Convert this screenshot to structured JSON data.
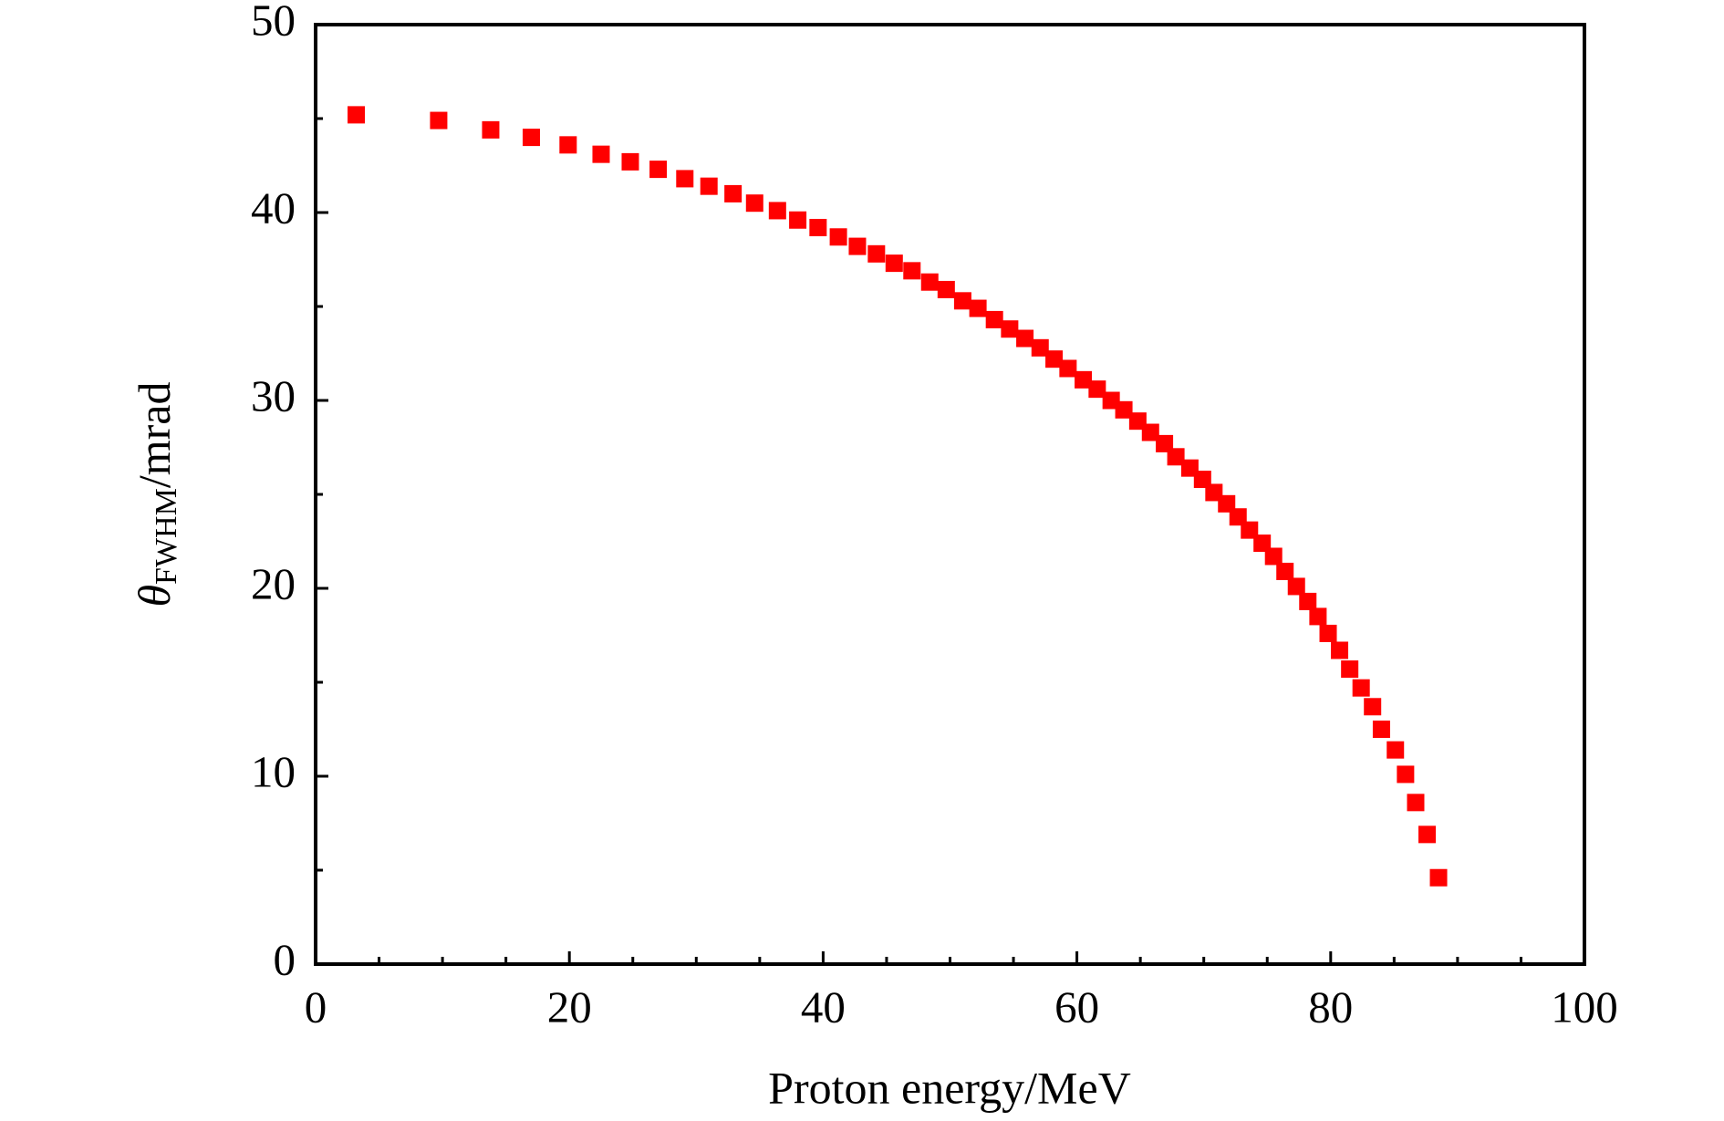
{
  "chart_data": {
    "type": "scatter",
    "x_label": "Proton energy/MeV",
    "y_label": {
      "symbol": "θ",
      "subscript": "FWHM",
      "unit": "/mrad"
    },
    "color": "#ff0000",
    "xlim": [
      0,
      100
    ],
    "ylim": [
      0,
      50
    ],
    "xticks": [
      0,
      20,
      40,
      60,
      80,
      100
    ],
    "yticks": [
      0,
      10,
      20,
      30,
      40,
      50
    ],
    "grid": false,
    "x": [
      3.2,
      9.7,
      13.8,
      17.0,
      19.9,
      22.5,
      24.8,
      27.0,
      29.1,
      31.0,
      32.9,
      34.6,
      36.4,
      38.0,
      39.6,
      41.2,
      42.7,
      44.2,
      45.6,
      47.0,
      48.4,
      49.7,
      51.0,
      52.2,
      53.5,
      54.7,
      55.9,
      57.1,
      58.2,
      59.3,
      60.5,
      61.6,
      62.7,
      63.7,
      64.8,
      65.8,
      66.9,
      67.8,
      68.9,
      69.9,
      70.8,
      71.8,
      72.7,
      73.6,
      74.6,
      75.5,
      76.4,
      77.3,
      78.2,
      79.0,
      79.8,
      80.7,
      81.5,
      82.4,
      83.3,
      84.0,
      85.1,
      85.9,
      86.7,
      87.6,
      88.5
    ],
    "values": [
      45.2,
      44.9,
      44.4,
      44.0,
      43.6,
      43.1,
      42.7,
      42.3,
      41.8,
      41.4,
      41.0,
      40.5,
      40.1,
      39.6,
      39.2,
      38.7,
      38.2,
      37.8,
      37.3,
      36.9,
      36.3,
      35.9,
      35.3,
      34.9,
      34.3,
      33.8,
      33.3,
      32.8,
      32.2,
      31.7,
      31.1,
      30.6,
      30.0,
      29.5,
      28.9,
      28.3,
      27.7,
      27.0,
      26.4,
      25.8,
      25.1,
      24.5,
      23.8,
      23.1,
      22.4,
      21.7,
      20.9,
      20.1,
      19.3,
      18.5,
      17.6,
      16.7,
      15.7,
      14.7,
      13.7,
      12.5,
      11.4,
      10.1,
      8.6,
      6.9,
      4.6
    ]
  }
}
